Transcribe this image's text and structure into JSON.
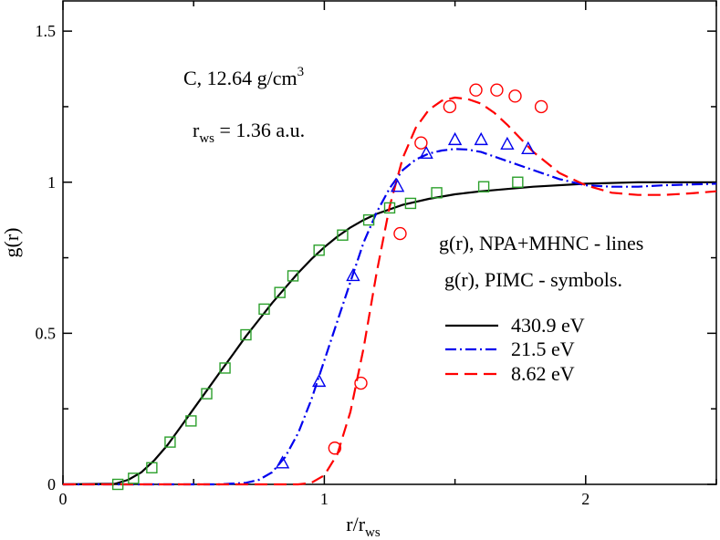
{
  "chart_data": {
    "type": "line",
    "title": "",
    "xlabel": {
      "main": "r/r",
      "sub": "ws"
    },
    "ylabel": "g(r)",
    "xlim": [
      0,
      2.5
    ],
    "ylim": [
      0,
      1.6
    ],
    "x_ticks": [
      0,
      1,
      2
    ],
    "x_tick_labels": [
      "0",
      "1",
      "2"
    ],
    "y_ticks": [
      0,
      0.5,
      1,
      1.5
    ],
    "y_tick_labels": [
      "0",
      "0.5",
      "1",
      "1.5"
    ],
    "annotations": {
      "material": {
        "main": "C, 12.64 g/cm",
        "sup": "3"
      },
      "rws": {
        "pre": "r",
        "sub": "ws",
        "post": " = 1.36 a.u."
      },
      "lines_note": "g(r), NPA+MHNC - lines",
      "symbols_note": "g(r), PIMC - symbols."
    },
    "legend_position": "center-right",
    "series": [
      {
        "name": "430.9 eV",
        "color": "#000000",
        "dash": "solid",
        "marker": "square",
        "marker_color": "#2ca02c",
        "line": {
          "x": [
            0,
            0.2,
            0.25,
            0.3,
            0.35,
            0.4,
            0.45,
            0.5,
            0.55,
            0.6,
            0.65,
            0.7,
            0.75,
            0.8,
            0.85,
            0.9,
            0.95,
            1.0,
            1.05,
            1.1,
            1.15,
            1.2,
            1.3,
            1.4,
            1.5,
            1.6,
            1.8,
            2.0,
            2.2,
            2.5
          ],
          "y": [
            0,
            0.002,
            0.015,
            0.04,
            0.08,
            0.13,
            0.19,
            0.25,
            0.31,
            0.37,
            0.43,
            0.49,
            0.545,
            0.6,
            0.65,
            0.7,
            0.745,
            0.785,
            0.82,
            0.85,
            0.875,
            0.895,
            0.925,
            0.945,
            0.96,
            0.97,
            0.985,
            0.995,
            1.0,
            1.0
          ]
        },
        "points": {
          "x": [
            0.21,
            0.27,
            0.34,
            0.41,
            0.49,
            0.55,
            0.62,
            0.7,
            0.77,
            0.83,
            0.88,
            0.98,
            1.07,
            1.17,
            1.25,
            1.33,
            1.43,
            1.61,
            1.74
          ],
          "y": [
            0.0,
            0.02,
            0.055,
            0.14,
            0.21,
            0.3,
            0.385,
            0.495,
            0.58,
            0.635,
            0.69,
            0.775,
            0.825,
            0.875,
            0.915,
            0.93,
            0.965,
            0.985,
            1.0
          ]
        }
      },
      {
        "name": "21.5 eV",
        "color": "#0000ee",
        "dash": "dashdot",
        "marker": "triangle",
        "marker_color": "#0000ee",
        "line": {
          "x": [
            0,
            0.6,
            0.7,
            0.75,
            0.8,
            0.85,
            0.9,
            0.95,
            1.0,
            1.05,
            1.1,
            1.15,
            1.2,
            1.25,
            1.3,
            1.35,
            1.4,
            1.45,
            1.5,
            1.55,
            1.6,
            1.65,
            1.7,
            1.8,
            1.9,
            2.0,
            2.1,
            2.2,
            2.3,
            2.5
          ],
          "y": [
            0,
            0.0,
            0.005,
            0.015,
            0.04,
            0.09,
            0.17,
            0.28,
            0.41,
            0.54,
            0.67,
            0.8,
            0.9,
            0.98,
            1.04,
            1.075,
            1.095,
            1.105,
            1.11,
            1.108,
            1.1,
            1.085,
            1.07,
            1.04,
            1.01,
            0.99,
            0.985,
            0.985,
            0.99,
            0.995
          ]
        },
        "points": {
          "x": [
            0.84,
            0.98,
            1.11,
            1.28,
            1.39,
            1.5,
            1.6,
            1.7,
            1.78
          ],
          "y": [
            0.07,
            0.34,
            0.69,
            0.985,
            1.095,
            1.14,
            1.14,
            1.125,
            1.11
          ]
        }
      },
      {
        "name": "8.62 eV",
        "color": "#ff0000",
        "dash": "dashed",
        "marker": "circle",
        "marker_color": "#ff0000",
        "line": {
          "x": [
            0,
            0.9,
            0.95,
            1.0,
            1.05,
            1.1,
            1.15,
            1.2,
            1.25,
            1.3,
            1.35,
            1.4,
            1.45,
            1.5,
            1.55,
            1.6,
            1.65,
            1.7,
            1.8,
            1.9,
            2.0,
            2.1,
            2.2,
            2.3,
            2.4,
            2.5
          ],
          "y": [
            0,
            0.0,
            0.005,
            0.03,
            0.1,
            0.24,
            0.45,
            0.7,
            0.92,
            1.08,
            1.18,
            1.24,
            1.27,
            1.28,
            1.275,
            1.26,
            1.23,
            1.19,
            1.1,
            1.03,
            0.99,
            0.965,
            0.958,
            0.958,
            0.963,
            0.97
          ]
        },
        "points": {
          "x": [
            1.04,
            1.14,
            1.29,
            1.37,
            1.48,
            1.58,
            1.66,
            1.73,
            1.83
          ],
          "y": [
            0.12,
            0.335,
            0.83,
            1.13,
            1.25,
            1.305,
            1.305,
            1.285,
            1.25
          ]
        }
      }
    ]
  }
}
